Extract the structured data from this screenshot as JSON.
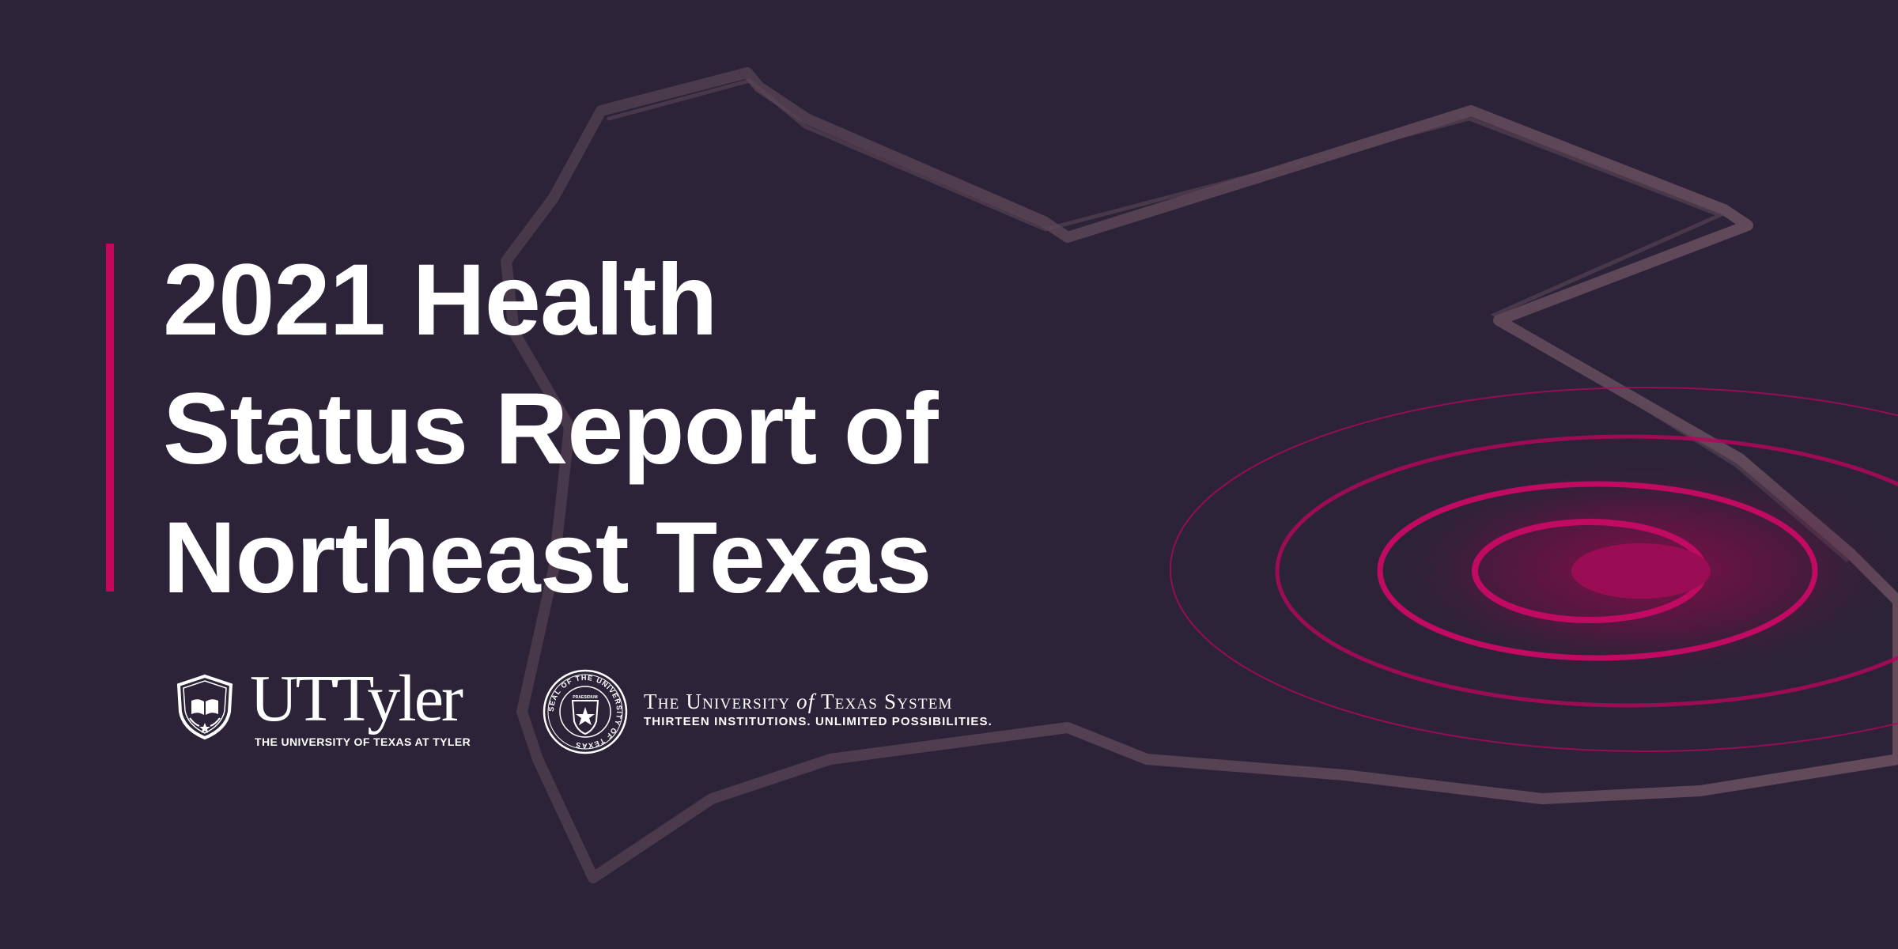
{
  "title": {
    "lines": [
      "2021 Health",
      "Status Report of",
      "Northeast Texas"
    ]
  },
  "logos": {
    "ut_tyler": {
      "wordmark": "UTTyler",
      "tagline": "THE UNIVERSITY OF TEXAS AT TYLER"
    },
    "ut_system": {
      "name_part1": "The University ",
      "name_of": "of",
      "name_part2": " Texas System",
      "tagline": "THIRTEEN INSTITUTIONS. UNLIMITED POSSIBILITIES.",
      "seal_text": "SEAL OF THE UNIVERSITY OF TEXAS",
      "seal_inner": "PRAESIDIUM"
    }
  },
  "colors": {
    "background": "#2c2338",
    "accent": "#c5065a",
    "map_outline": "#5b4656",
    "text": "#ffffff"
  },
  "icons": {
    "map": "texas-outline-icon",
    "target": "concentric-rings-icon",
    "shield": "shield-book-icon",
    "seal": "university-seal-icon"
  }
}
